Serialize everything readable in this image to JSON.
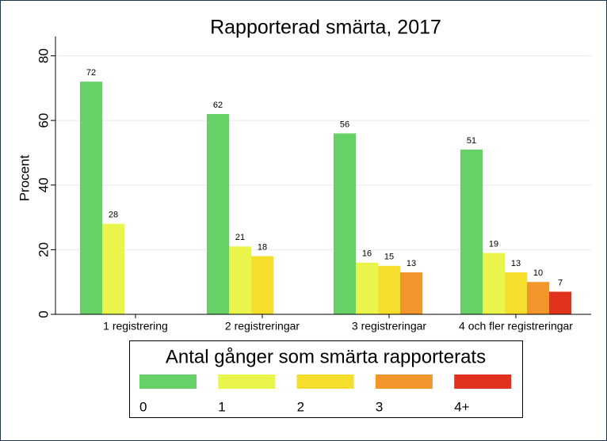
{
  "chart_data": {
    "type": "bar",
    "title": "Rapporterad smärta, 2017",
    "ylabel": "Procent",
    "categories": [
      "1 registrering",
      "2 registreringar",
      "3 registreringar",
      "4 och fler registreringar"
    ],
    "legend_title": "Antal gånger som smärta rapporterats",
    "series": [
      {
        "name": "0",
        "color": "#66d166",
        "values": [
          72,
          62,
          56,
          51
        ]
      },
      {
        "name": "1",
        "color": "#eaf54c",
        "values": [
          28,
          21,
          16,
          19
        ]
      },
      {
        "name": "2",
        "color": "#f6de2c",
        "values": [
          null,
          18,
          15,
          13
        ]
      },
      {
        "name": "3",
        "color": "#f2952a",
        "values": [
          null,
          null,
          13,
          10
        ]
      },
      {
        "name": "4+",
        "color": "#e0321c",
        "values": [
          null,
          null,
          null,
          7
        ]
      }
    ],
    "ylim": [
      0,
      86
    ],
    "yticks": [
      0,
      20,
      40,
      60,
      80
    ],
    "grid": true
  }
}
